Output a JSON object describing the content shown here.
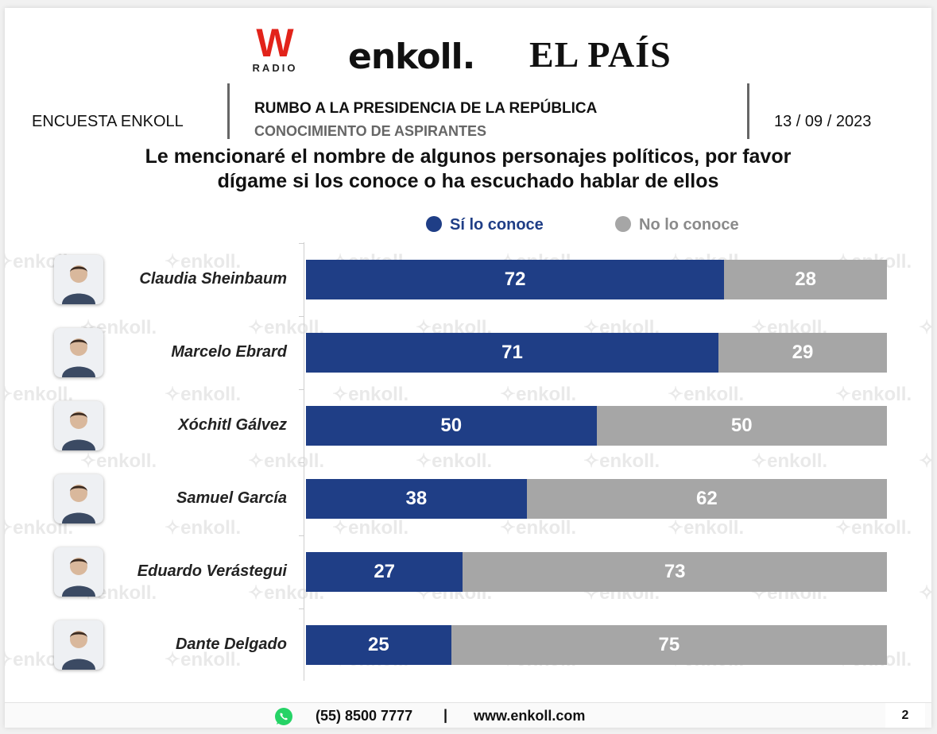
{
  "logos": {
    "wradio_letter": "W",
    "wradio_text": "RADIO",
    "enkoll": "enkoll.",
    "elpais": "EL PAÍS"
  },
  "header": {
    "survey_name": "ENCUESTA ENKOLL",
    "title": "RUMBO A LA PRESIDENCIA DE LA REPÚBLICA",
    "subtitle": "CONOCIMIENTO DE ASPIRANTES",
    "date": "13 / 09 / 2023"
  },
  "question": {
    "line1": "Le mencionaré el nombre de algunos personajes políticos, por favor",
    "line2": "dígame si los conoce o ha escuchado hablar de ellos"
  },
  "watermark_text": "enkoll.",
  "chart_data": {
    "type": "bar",
    "orientation": "horizontal",
    "stacked": true,
    "categories": [
      "Claudia Sheinbaum",
      "Marcelo Ebrard",
      "Xóchitl Gálvez",
      "Samuel García",
      "Eduardo Verástegui",
      "Dante Delgado"
    ],
    "series": [
      {
        "name": "Sí lo conoce",
        "color": "#1f3e86",
        "values": [
          72,
          71,
          50,
          38,
          27,
          25
        ]
      },
      {
        "name": "No lo conoce",
        "color": "#a6a6a6",
        "values": [
          28,
          29,
          50,
          62,
          73,
          75
        ]
      }
    ],
    "xlim": [
      0,
      100
    ],
    "legend_position": "top",
    "grid": false
  },
  "footer": {
    "phone": "(55) 8500 7777",
    "separator": "|",
    "website": "www.enkoll.com",
    "page": "2"
  },
  "colors": {
    "accent_blue": "#1f3e86",
    "grey": "#a6a6a6",
    "wradio_red": "#e2231a",
    "whatsapp_green": "#25d366"
  },
  "icons": [
    "whatsapp-icon",
    "person-avatar-icon"
  ]
}
